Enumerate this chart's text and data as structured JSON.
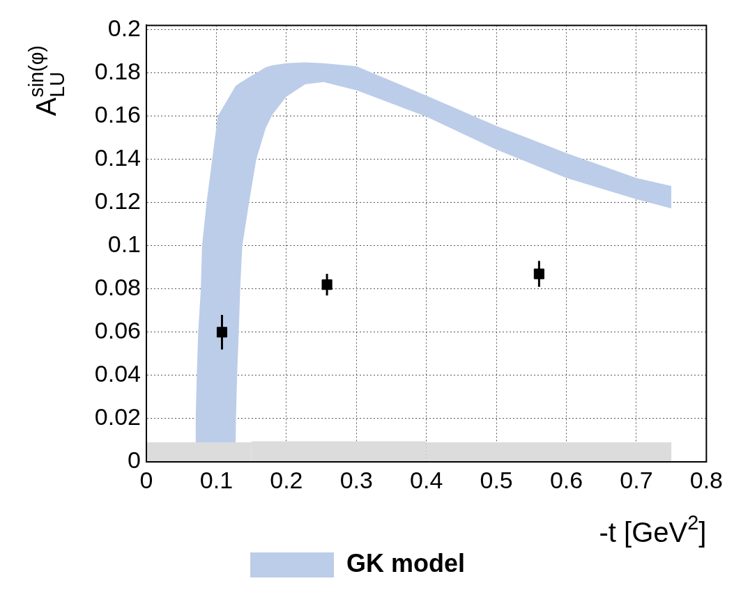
{
  "chart_data": {
    "type": "scatter",
    "xlabel": "-t [GeV$^{2}$]",
    "ylabel": "A$_{LU}$$^{sin(φ)}$",
    "xlim": [
      0,
      0.8
    ],
    "ylim": [
      0,
      0.202
    ],
    "xticks": [
      0,
      0.1,
      0.2,
      0.3,
      0.4,
      0.5,
      0.6,
      0.7,
      0.8
    ],
    "yticks": [
      0,
      0.02,
      0.04,
      0.06,
      0.08,
      0.1,
      0.12,
      0.14,
      0.16,
      0.18,
      0.2
    ],
    "grid": true,
    "legend": "bottom",
    "marker": "square",
    "series": [
      {
        "name": "GK model",
        "type": "area",
        "color": "#bccde9",
        "x": [
          0.07,
          0.0704,
          0.072,
          0.074,
          0.0778,
          0.0795,
          0.086,
          0.094,
          0.102,
          0.1275,
          0.128,
          0.1296,
          0.132,
          0.134,
          0.137,
          0.1467,
          0.157,
          0.1705,
          0.18,
          0.2,
          0.2268,
          0.253,
          0.3,
          0.4,
          0.5,
          0.6,
          0.7,
          0.75
        ],
        "upper": [
          0.009,
          0.02,
          0.04,
          0.06,
          0.08,
          0.1,
          0.12,
          0.14,
          0.16,
          0.174,
          0.174,
          0.1745,
          0.175,
          0.1755,
          0.176,
          0.178,
          0.18,
          0.1826,
          0.1835,
          0.1845,
          0.1849,
          0.1845,
          0.1831,
          0.1695,
          0.1555,
          0.1429,
          0.1314,
          0.1277
        ],
        "lower": [
          0.009,
          0.009,
          0.009,
          0.009,
          0.009,
          0.009,
          0.009,
          0.009,
          0.009,
          0.009,
          0.02,
          0.04,
          0.06,
          0.08,
          0.1,
          0.12,
          0.14,
          0.1545,
          0.1607,
          0.169,
          0.1747,
          0.1758,
          0.172,
          0.1597,
          0.1445,
          0.1314,
          0.1215,
          0.1173
        ],
        "values": [
          null,
          null,
          null,
          null,
          null,
          null,
          null,
          null,
          null,
          null,
          null,
          null,
          null,
          null,
          null,
          null,
          null,
          null,
          null,
          null,
          null,
          null,
          null,
          null,
          null,
          null,
          null,
          null
        ]
      },
      {
        "type": "scatter",
        "color": "#000000",
        "x": [
          0.108,
          0.258,
          0.561
        ],
        "values": [
          0.06,
          0.082,
          0.087
        ],
        "errors": [
          0.008,
          0.005,
          0.006
        ]
      },
      {
        "type": "histogram",
        "color": "#dcdcdc",
        "bins": [
          0,
          0.15,
          0.4,
          0.75
        ],
        "values": [
          0.009,
          0.0095,
          0.009
        ]
      }
    ]
  }
}
